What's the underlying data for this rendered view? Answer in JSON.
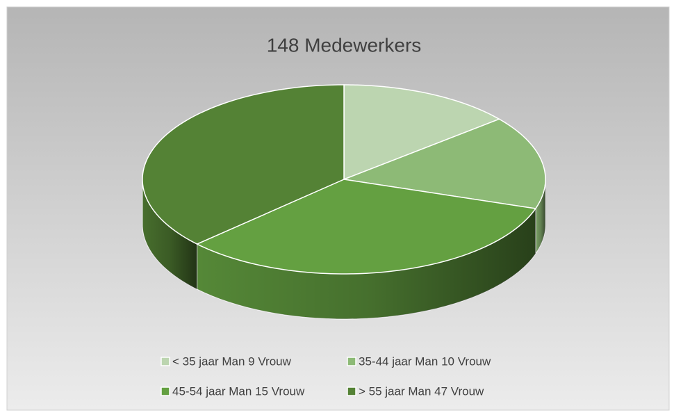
{
  "chart_data": {
    "type": "pie3d",
    "title": "148 Medewerkers",
    "categories": [
      "< 35 jaar Man 9 Vrouw",
      "35-44 jaar Man 10 Vrouw",
      "45-54 jaar Man 15 Vrouw",
      "> 55 jaar Man 47 Vrouw"
    ],
    "values": [
      14,
      16,
      33,
      37
    ],
    "colors": [
      "#bcd5b0",
      "#8dba76",
      "#64a041",
      "#548235"
    ],
    "legend": "bottom"
  }
}
